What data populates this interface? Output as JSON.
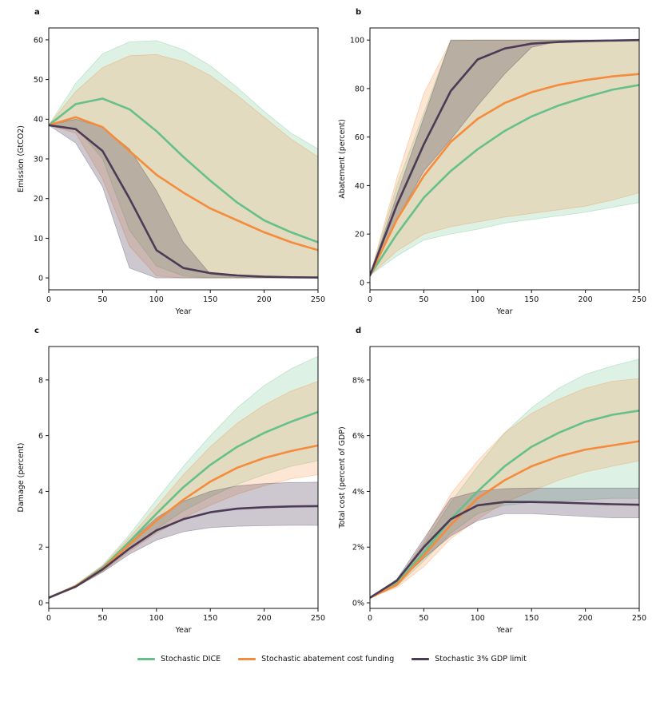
{
  "colors": {
    "dice": "#66c08a",
    "abate": "#f58b3c",
    "gdp": "#4b3b55"
  },
  "legend": [
    {
      "key": "dice",
      "label": "Stochastic DICE"
    },
    {
      "key": "abate",
      "label": "Stochastic abatement cost funding"
    },
    {
      "key": "gdp",
      "label": "Stochastic 3% GDP limit"
    }
  ],
  "chart_data": [
    {
      "panel": "a",
      "type": "line",
      "title": "",
      "xlabel": "Year",
      "ylabel": "Emission (GtCO2)",
      "xlim": [
        0,
        250
      ],
      "ylim": [
        -3,
        63
      ],
      "xticks": [
        0,
        50,
        100,
        150,
        200,
        250
      ],
      "yticks": [
        0,
        10,
        20,
        30,
        40,
        50,
        60
      ],
      "tick_suffix": "",
      "x": [
        0,
        25,
        50,
        75,
        100,
        125,
        150,
        175,
        200,
        225,
        250
      ],
      "series": [
        {
          "key": "dice",
          "name": "Stochastic DICE",
          "values": [
            38.5,
            43.8,
            45.2,
            42.5,
            37.0,
            30.5,
            24.5,
            19.0,
            14.5,
            11.5,
            9.0
          ],
          "upper": [
            38.5,
            49.0,
            56.5,
            59.5,
            59.8,
            57.5,
            53.5,
            48.0,
            42.0,
            36.5,
            32.5
          ],
          "lower": [
            38.5,
            38.0,
            30.0,
            12.0,
            3.0,
            0.5,
            0,
            0,
            0,
            0,
            0
          ]
        },
        {
          "key": "abate",
          "name": "Stochastic abatement cost funding",
          "values": [
            38.5,
            40.5,
            38.0,
            32.0,
            26.0,
            21.5,
            17.5,
            14.5,
            11.5,
            9.0,
            7.0
          ],
          "upper": [
            38.5,
            47.0,
            53.0,
            56.0,
            56.3,
            54.5,
            51.0,
            46.0,
            40.5,
            35.0,
            30.5
          ],
          "lower": [
            38.5,
            36.5,
            25.0,
            8.0,
            0.5,
            0,
            0,
            0,
            0,
            0,
            0
          ]
        },
        {
          "key": "gdp",
          "name": "Stochastic 3% GDP limit",
          "values": [
            38.5,
            37.5,
            32.0,
            20.0,
            7.0,
            2.5,
            1.2,
            0.6,
            0.3,
            0.15,
            0.1
          ],
          "upper": [
            38.5,
            40.0,
            38.0,
            32.5,
            22.0,
            9.0,
            1.0,
            0.2,
            0,
            0,
            0
          ],
          "lower": [
            38.5,
            34.0,
            23.0,
            2.5,
            0,
            0,
            0,
            0,
            0,
            0,
            0
          ]
        }
      ]
    },
    {
      "panel": "b",
      "type": "line",
      "title": "",
      "xlabel": "Year",
      "ylabel": "Abatement (percent)",
      "xlim": [
        0,
        250
      ],
      "ylim": [
        -3,
        105
      ],
      "xticks": [
        0,
        50,
        100,
        150,
        200,
        250
      ],
      "yticks": [
        0,
        20,
        40,
        60,
        80,
        100
      ],
      "tick_suffix": "",
      "x": [
        0,
        25,
        50,
        75,
        100,
        125,
        150,
        175,
        200,
        225,
        250
      ],
      "series": [
        {
          "key": "dice",
          "name": "Stochastic DICE",
          "values": [
            3,
            20,
            35,
            46,
            55,
            62.5,
            68.5,
            73,
            76.5,
            79.5,
            81.5
          ],
          "upper": [
            3,
            40,
            70,
            100,
            100,
            100,
            100,
            100,
            100,
            100,
            100
          ],
          "lower": [
            3,
            11,
            17.5,
            20,
            22,
            24.5,
            26,
            27.5,
            29,
            31,
            33
          ]
        },
        {
          "key": "abate",
          "name": "Stochastic abatement cost funding",
          "values": [
            3,
            26,
            44,
            58,
            67.5,
            74,
            78.5,
            81.5,
            83.5,
            85,
            86
          ],
          "upper": [
            3,
            43,
            78,
            99.5,
            100,
            100,
            100,
            100,
            100,
            100,
            100
          ],
          "lower": [
            3,
            13,
            20,
            23,
            25,
            27,
            28.5,
            30,
            31.5,
            34,
            37
          ]
        },
        {
          "key": "gdp",
          "name": "Stochastic 3% GDP limit",
          "values": [
            3,
            32,
            57,
            79,
            92,
            96.5,
            98.5,
            99.2,
            99.6,
            99.8,
            100
          ],
          "upper": [
            3,
            36,
            68,
            100,
            100,
            100,
            100,
            100,
            100,
            100,
            100
          ],
          "lower": [
            3,
            26,
            46,
            59,
            73,
            86,
            97,
            99.5,
            100,
            100,
            100
          ]
        }
      ]
    },
    {
      "panel": "c",
      "type": "line",
      "title": "",
      "xlabel": "Year",
      "ylabel": "Damage (percent)",
      "xlim": [
        0,
        250
      ],
      "ylim": [
        -0.2,
        9.2
      ],
      "xticks": [
        0,
        50,
        100,
        150,
        200,
        250
      ],
      "yticks": [
        0,
        2,
        4,
        6,
        8
      ],
      "tick_suffix": "",
      "x": [
        0,
        25,
        50,
        75,
        100,
        125,
        150,
        175,
        200,
        225,
        250
      ],
      "series": [
        {
          "key": "dice",
          "name": "Stochastic DICE",
          "values": [
            0.18,
            0.6,
            1.25,
            2.2,
            3.2,
            4.15,
            4.95,
            5.6,
            6.1,
            6.5,
            6.85
          ],
          "upper": [
            0.18,
            0.65,
            1.35,
            2.45,
            3.7,
            4.9,
            6.0,
            7.0,
            7.8,
            8.4,
            8.85
          ],
          "lower": [
            0.18,
            0.55,
            1.15,
            1.95,
            2.65,
            3.3,
            3.8,
            4.25,
            4.6,
            4.9,
            5.1
          ]
        },
        {
          "key": "abate",
          "name": "Stochastic abatement cost funding",
          "values": [
            0.18,
            0.6,
            1.22,
            2.1,
            2.95,
            3.7,
            4.35,
            4.85,
            5.2,
            5.45,
            5.65
          ],
          "upper": [
            0.18,
            0.64,
            1.32,
            2.35,
            3.45,
            4.6,
            5.6,
            6.45,
            7.1,
            7.6,
            7.95
          ],
          "lower": [
            0.18,
            0.56,
            1.12,
            1.85,
            2.5,
            3.05,
            3.5,
            3.9,
            4.2,
            4.45,
            4.6
          ]
        },
        {
          "key": "gdp",
          "name": "Stochastic 3% GDP limit",
          "values": [
            0.18,
            0.58,
            1.2,
            1.95,
            2.6,
            3.0,
            3.25,
            3.38,
            3.43,
            3.46,
            3.47
          ],
          "upper": [
            0.18,
            0.62,
            1.3,
            2.2,
            3.05,
            3.65,
            4.0,
            4.2,
            4.28,
            4.32,
            4.33
          ],
          "lower": [
            0.18,
            0.55,
            1.1,
            1.75,
            2.25,
            2.55,
            2.7,
            2.75,
            2.77,
            2.78,
            2.78
          ]
        }
      ]
    },
    {
      "panel": "d",
      "type": "line",
      "title": "",
      "xlabel": "Year",
      "ylabel": "Total cost (percent of GDP)",
      "xlim": [
        0,
        250
      ],
      "ylim": [
        -0.2,
        9.2
      ],
      "xticks": [
        0,
        50,
        100,
        150,
        200,
        250
      ],
      "yticks": [
        0,
        2,
        4,
        6,
        8
      ],
      "tick_suffix": "%",
      "x": [
        0,
        25,
        50,
        75,
        100,
        125,
        150,
        175,
        200,
        225,
        250
      ],
      "series": [
        {
          "key": "dice",
          "name": "Stochastic DICE",
          "values": [
            0.18,
            0.7,
            1.8,
            3.0,
            4.0,
            4.9,
            5.6,
            6.1,
            6.5,
            6.75,
            6.9
          ],
          "upper": [
            0.18,
            0.8,
            2.1,
            3.6,
            4.9,
            6.1,
            7.0,
            7.7,
            8.2,
            8.5,
            8.75
          ],
          "lower": [
            0.18,
            0.6,
            1.5,
            2.5,
            3.2,
            3.5,
            3.6,
            3.65,
            3.7,
            3.75,
            3.75
          ]
        },
        {
          "key": "abate",
          "name": "Stochastic abatement cost funding",
          "values": [
            0.18,
            0.65,
            1.7,
            2.8,
            3.75,
            4.4,
            4.9,
            5.25,
            5.5,
            5.65,
            5.8
          ],
          "upper": [
            0.18,
            0.75,
            2.2,
            3.9,
            5.1,
            6.1,
            6.8,
            7.3,
            7.7,
            7.95,
            8.05
          ],
          "lower": [
            0.18,
            0.55,
            1.3,
            2.3,
            3.0,
            3.6,
            4.0,
            4.4,
            4.7,
            4.9,
            5.1
          ]
        },
        {
          "key": "gdp",
          "name": "Stochastic 3% GDP limit",
          "values": [
            0.18,
            0.8,
            2.0,
            3.0,
            3.5,
            3.62,
            3.62,
            3.6,
            3.57,
            3.54,
            3.52
          ],
          "upper": [
            0.18,
            0.85,
            2.3,
            3.75,
            4.0,
            4.1,
            4.12,
            4.12,
            4.12,
            4.12,
            4.12
          ],
          "lower": [
            0.18,
            0.7,
            1.6,
            2.4,
            2.95,
            3.2,
            3.2,
            3.15,
            3.1,
            3.05,
            3.05
          ]
        }
      ]
    }
  ]
}
